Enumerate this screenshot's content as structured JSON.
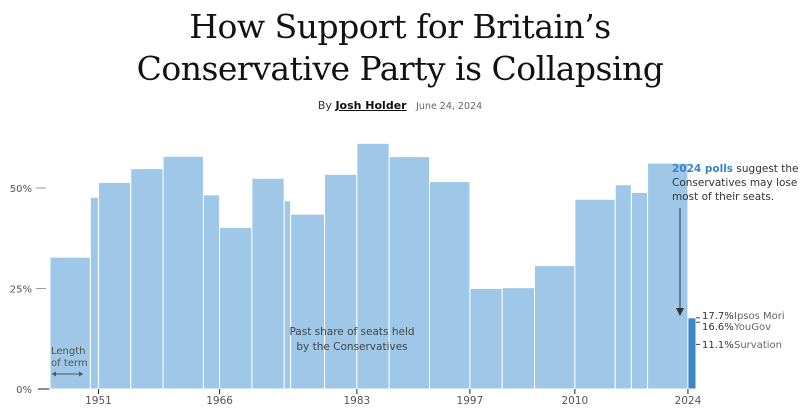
{
  "header": {
    "title_line1": "How Support for Britain’s",
    "title_line2": "Conservative Party is Collapsing",
    "byline_prefix": "By",
    "author": "Josh Holder",
    "date": "June 24, 2024"
  },
  "chart_data": {
    "type": "bar",
    "ylim": [
      0,
      60
    ],
    "yticks": [
      0,
      25,
      50
    ],
    "ytick_labels": [
      "0%",
      "25%",
      "50%"
    ],
    "xticks": [
      "1951",
      "1966",
      "1983",
      "1997",
      "2010",
      "2024"
    ],
    "xlim": [
      1945,
      2025
    ],
    "series": [
      {
        "values": [
          {
            "start": 1945,
            "end": 1950,
            "value": 32.8
          },
          {
            "start": 1950,
            "end": 1951,
            "value": 47.7
          },
          {
            "start": 1951,
            "end": 1955,
            "value": 51.4
          },
          {
            "start": 1955,
            "end": 1959,
            "value": 54.8
          },
          {
            "start": 1959,
            "end": 1964,
            "value": 57.9
          },
          {
            "start": 1964,
            "end": 1966,
            "value": 48.3
          },
          {
            "start": 1966,
            "end": 1970,
            "value": 40.2
          },
          {
            "start": 1970,
            "end": 1974,
            "value": 52.4
          },
          {
            "start": 1974,
            "end": 1974.8,
            "value": 46.8
          },
          {
            "start": 1974.8,
            "end": 1979,
            "value": 43.5
          },
          {
            "start": 1979,
            "end": 1983,
            "value": 53.4
          },
          {
            "start": 1983,
            "end": 1987,
            "value": 61.1
          },
          {
            "start": 1987,
            "end": 1992,
            "value": 57.8
          },
          {
            "start": 1992,
            "end": 1997,
            "value": 51.6
          },
          {
            "start": 1997,
            "end": 2001,
            "value": 25.0
          },
          {
            "start": 2001,
            "end": 2005,
            "value": 25.2
          },
          {
            "start": 2005,
            "end": 2010,
            "value": 30.7
          },
          {
            "start": 2010,
            "end": 2015,
            "value": 47.2
          },
          {
            "start": 2015,
            "end": 2017,
            "value": 50.8
          },
          {
            "start": 2017,
            "end": 2019,
            "value": 48.9
          },
          {
            "start": 2019,
            "end": 2024,
            "value": 56.2
          }
        ]
      },
      {
        "values": [
          {
            "start": 2024,
            "end": 2025,
            "value": 17.7
          }
        ]
      }
    ],
    "polls": [
      {
        "value": 17.7,
        "value_label": "17.7%",
        "source": "Ipsos Mori"
      },
      {
        "value": 16.6,
        "value_label": "16.6%",
        "source": "YouGov"
      },
      {
        "value": 11.1,
        "value_label": "11.1%",
        "source": "Survation"
      }
    ],
    "annotations": {
      "past_share_line1": "Past share of seats held",
      "past_share_line2": "by the Conservatives",
      "term_line1": "Length",
      "term_line2": "of term",
      "note_strong": "2024 polls",
      "note_line1_rest": " suggest the",
      "note_line2": "Conservatives may lose",
      "note_line3": "most of their seats."
    },
    "colors": {
      "past_bar": "#9ec7e8",
      "current_bar": "#3a86c8",
      "grid": "#999999"
    }
  }
}
